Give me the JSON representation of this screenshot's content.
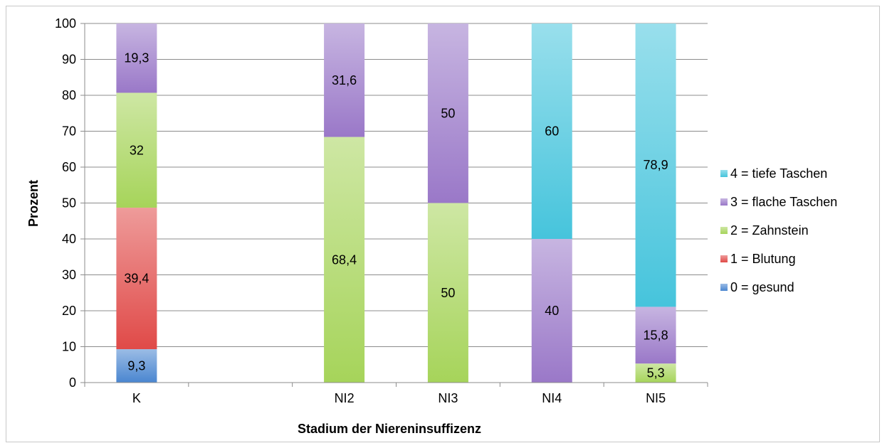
{
  "chart_data": {
    "type": "bar",
    "stacked": true,
    "title": "",
    "xlabel": "Stadium der Niereninsuffizenz",
    "ylabel": "Prozent",
    "ylim": [
      0,
      100
    ],
    "yticks": [
      0,
      10,
      20,
      30,
      40,
      50,
      60,
      70,
      80,
      90,
      100
    ],
    "ytick_labels": [
      "0",
      "10",
      "20",
      "30",
      "40",
      "50",
      "60",
      "70",
      "80",
      "90",
      "100"
    ],
    "grid": true,
    "legend_position": "right",
    "categories": [
      "K",
      "",
      "NI2",
      "NI3",
      "NI4",
      "NI5"
    ],
    "series": [
      {
        "name": "0 = gesund",
        "color": "#4a86d0",
        "values": [
          9.3,
          0,
          0,
          0,
          0,
          0
        ],
        "labels": [
          "9,3",
          "",
          "",
          "",
          "",
          ""
        ]
      },
      {
        "name": "1 = Blutung",
        "color": "#e04a48",
        "values": [
          39.4,
          0,
          0,
          0,
          0,
          0
        ],
        "labels": [
          "39,4",
          "",
          "",
          "",
          "",
          ""
        ]
      },
      {
        "name": "2 = Zahnstein",
        "color": "#a6d45a",
        "values": [
          32,
          0,
          68.4,
          50,
          0,
          5.3
        ],
        "labels": [
          "32",
          "",
          "68,4",
          "50",
          "",
          "5,3"
        ]
      },
      {
        "name": "3 = flache Taschen",
        "color": "#9a78c8",
        "values": [
          19.3,
          0,
          31.6,
          50,
          40,
          15.8
        ],
        "labels": [
          "19,3",
          "",
          "31,6",
          "50",
          "40",
          "15,8"
        ]
      },
      {
        "name": "4 = tiefe Taschen",
        "color": "#46c4dc",
        "values": [
          0,
          0,
          0,
          0,
          60,
          78.9
        ],
        "labels": [
          "",
          "",
          "",
          "",
          "60",
          "78,9"
        ]
      }
    ]
  }
}
